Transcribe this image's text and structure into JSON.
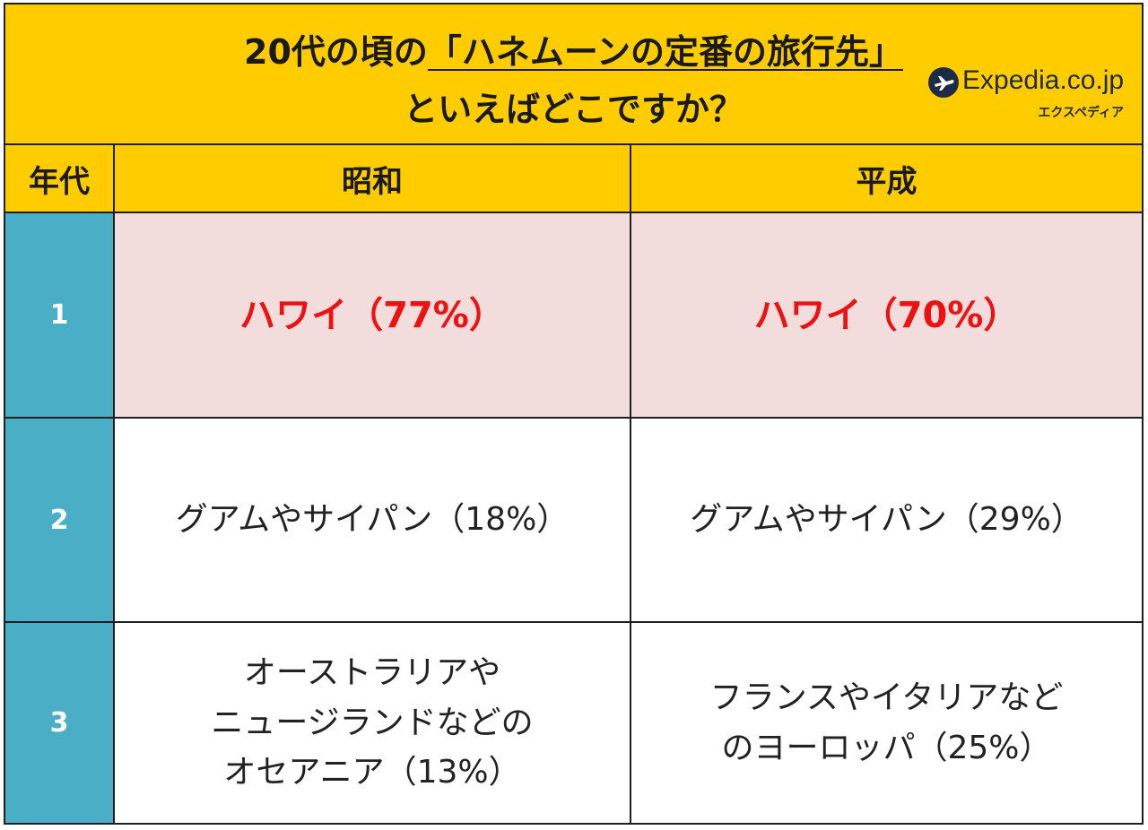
{
  "title": {
    "prefix": "20代の頃の",
    "emphasis": "「ハネムーンの定番の旅行先」",
    "line2": "といえばどこですか？"
  },
  "logo": {
    "word": "Expedia.co.jp",
    "sub": "エクスペディア",
    "icon": "airplane-globe-icon"
  },
  "colors": {
    "header_bg": "#ffcc00",
    "rank_bg": "#4aaec6",
    "top_row_bg": "#f2dcdc",
    "top_row_text": "#ee1111"
  },
  "chart_data": {
    "type": "table",
    "columns": [
      "年代",
      "昭和",
      "平成"
    ],
    "rows": [
      {
        "rank": "1",
        "showa": "ハワイ（77%）",
        "heisei": "ハワイ（70%）"
      },
      {
        "rank": "2",
        "showa": "グアムやサイパン（18%）",
        "heisei": "グアムやサイパン（29%）"
      },
      {
        "rank": "3",
        "showa": "オーストラリアや\nニュージランドなどの\nオセアニア（13%）",
        "heisei": "フランスやイタリアなど\nのヨーロッパ（25%）"
      }
    ]
  }
}
